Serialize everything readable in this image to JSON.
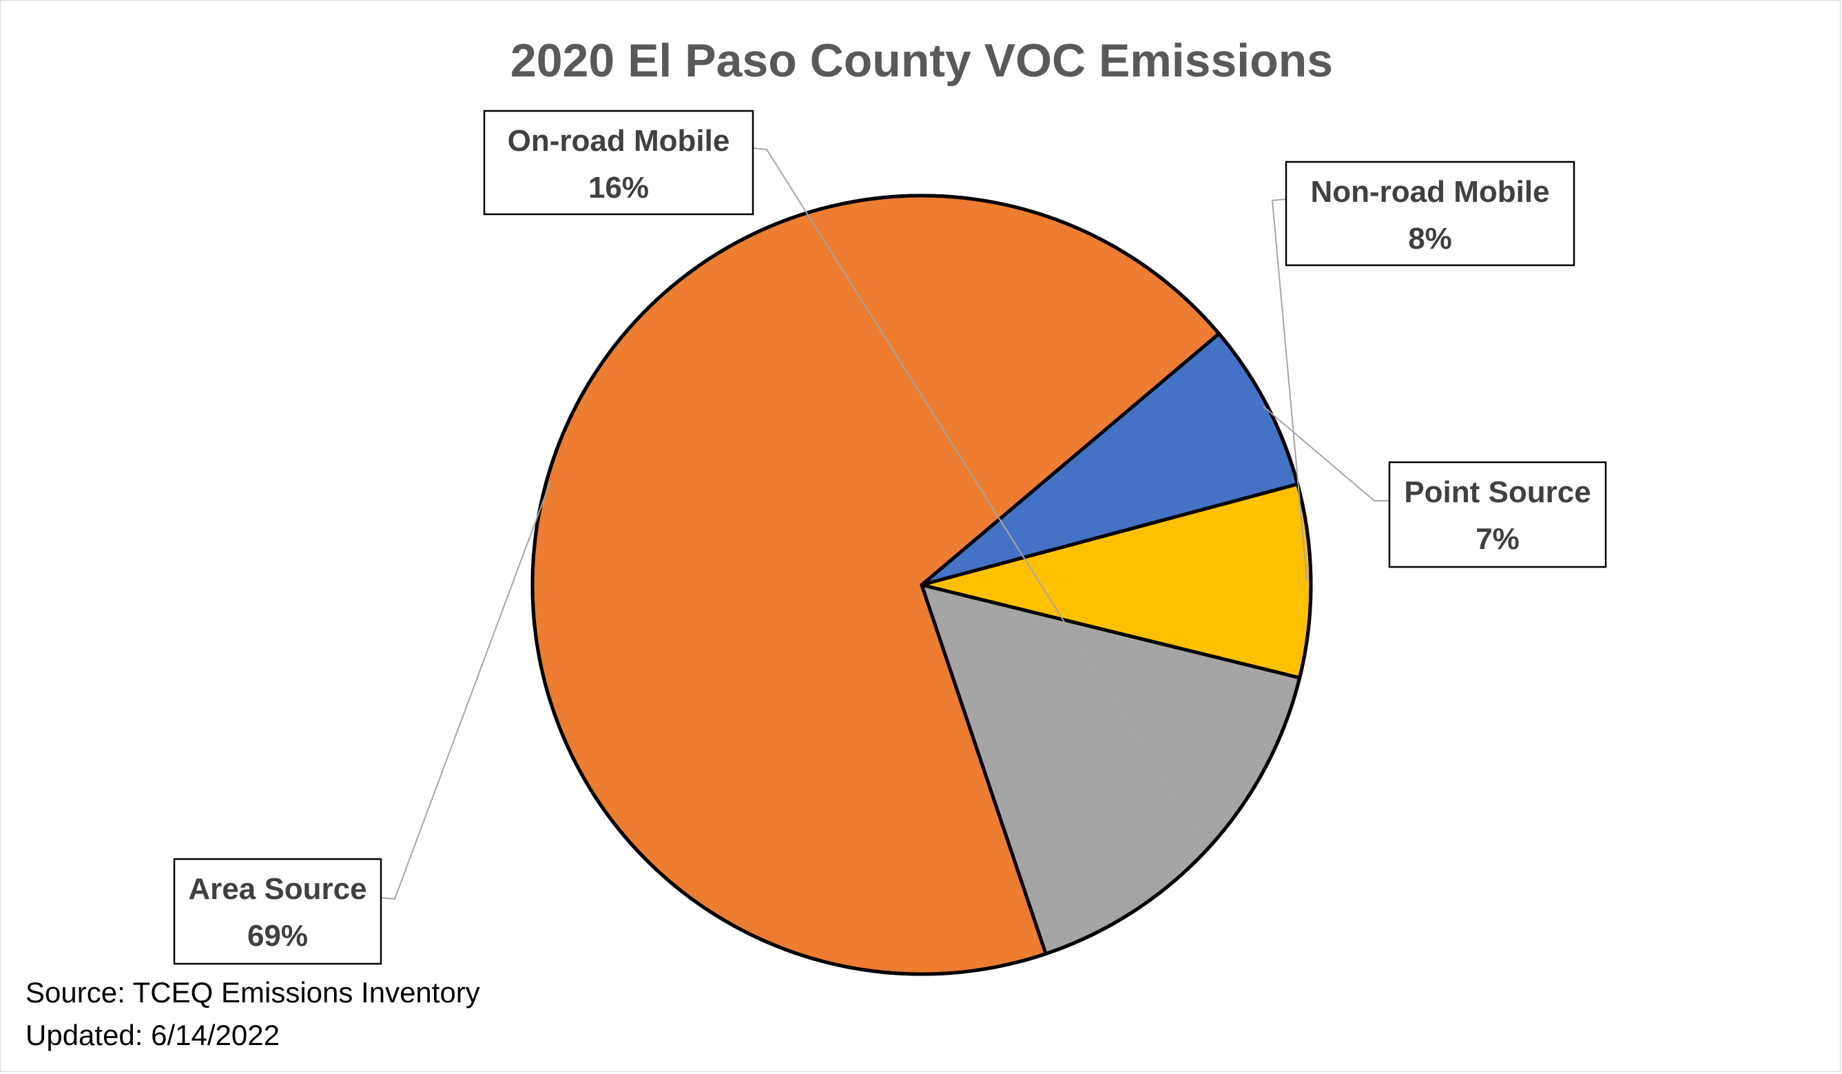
{
  "chart_data": {
    "type": "pie",
    "title": "2020 El Paso County VOC Emissions",
    "slices": [
      {
        "label": "Point Source",
        "value": 7,
        "display": "7%",
        "color": "#4472C4"
      },
      {
        "label": "Area Source",
        "value": 69,
        "display": "69%",
        "color": "#ED7D31"
      },
      {
        "label": "On-road Mobile",
        "value": 16,
        "display": "16%",
        "color": "#A5A5A5"
      },
      {
        "label": "Non-road Mobile",
        "value": 8,
        "display": "8%",
        "color": "#FFC000"
      }
    ],
    "footnotes": {
      "source": "Source: TCEQ Emissions Inventory",
      "updated": "Updated: 6/14/2022"
    }
  }
}
